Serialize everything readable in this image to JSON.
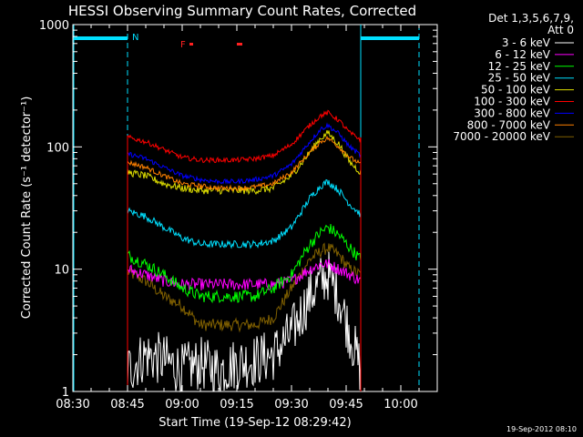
{
  "chart_data": {
    "type": "line",
    "title": "HESSI Observing Summary Count Rates, Corrected",
    "xlabel": "Start Time (19-Sep-12 08:29:42)",
    "ylabel": "Corrected Count Rate (s⁻¹ detector⁻¹)",
    "yscale": "log",
    "ylim": [
      1,
      1000
    ],
    "xlim_minutes": [
      0,
      100
    ],
    "x_tick_labels": [
      "08:30",
      "08:45",
      "09:00",
      "09:15",
      "09:30",
      "09:45",
      "10:00"
    ],
    "x_tick_minutes": [
      0,
      15,
      30,
      45,
      60,
      75,
      90
    ],
    "y_tick_labels": [
      "1",
      "10",
      "100",
      "1000"
    ],
    "y_tick_values": [
      1,
      10,
      100,
      1000
    ],
    "legend": {
      "header": [
        "Det 1,3,5,6,7,9,",
        "Att 0"
      ],
      "placement": "right"
    },
    "series": [
      {
        "name": "3 - 6 keV",
        "color": "#ffffff",
        "x": [
          15,
          20,
          25,
          30,
          35,
          40,
          45,
          50,
          55,
          60,
          65,
          68,
          70,
          73,
          76,
          79
        ],
        "values": [
          1.5,
          2.0,
          1.8,
          1.5,
          1.7,
          1.5,
          1.7,
          1.8,
          2.0,
          3.0,
          6.0,
          8.0,
          9.0,
          6.0,
          3.0,
          1.5
        ]
      },
      {
        "name": "6 - 12 keV",
        "color": "#ff00ff",
        "x": [
          15,
          20,
          25,
          30,
          35,
          40,
          45,
          50,
          55,
          60,
          65,
          68,
          70,
          73,
          76,
          79
        ],
        "values": [
          10,
          9,
          8,
          7.5,
          7.5,
          7.5,
          7.5,
          7.5,
          7.5,
          8,
          10,
          11,
          11,
          10,
          9,
          8
        ]
      },
      {
        "name": "12 - 25 keV",
        "color": "#00ff00",
        "x": [
          15,
          20,
          25,
          30,
          35,
          40,
          45,
          50,
          55,
          60,
          65,
          68,
          70,
          73,
          76,
          79
        ],
        "values": [
          13,
          11,
          9,
          7,
          6,
          6,
          6,
          6,
          7,
          9,
          16,
          20,
          22,
          19,
          15,
          12
        ]
      },
      {
        "name": "25 - 50 keV",
        "color": "#00e0ff",
        "x": [
          15,
          20,
          25,
          30,
          35,
          40,
          45,
          50,
          55,
          60,
          65,
          68,
          70,
          73,
          76,
          79
        ],
        "values": [
          30,
          27,
          22,
          18,
          16,
          16,
          16,
          16,
          17,
          22,
          38,
          48,
          52,
          44,
          34,
          28
        ]
      },
      {
        "name": "50 - 100 keV",
        "color": "#dddd00",
        "x": [
          15,
          20,
          25,
          30,
          35,
          40,
          45,
          50,
          55,
          60,
          65,
          68,
          70,
          73,
          76,
          79
        ],
        "values": [
          62,
          58,
          50,
          46,
          44,
          44,
          44,
          44,
          46,
          58,
          90,
          118,
          130,
          105,
          75,
          62
        ]
      },
      {
        "name": "100 - 300 keV",
        "color": "#ff0000",
        "x": [
          15,
          20,
          25,
          30,
          35,
          40,
          45,
          50,
          55,
          60,
          65,
          68,
          70,
          73,
          76,
          79
        ],
        "values": [
          120,
          110,
          95,
          82,
          78,
          78,
          78,
          80,
          85,
          105,
          150,
          180,
          190,
          165,
          130,
          115
        ]
      },
      {
        "name": "300 - 800 keV",
        "color": "#0000ff",
        "x": [
          15,
          20,
          25,
          30,
          35,
          40,
          45,
          50,
          55,
          60,
          65,
          68,
          70,
          73,
          76,
          79
        ],
        "values": [
          88,
          80,
          68,
          58,
          54,
          52,
          52,
          54,
          58,
          72,
          110,
          140,
          150,
          128,
          100,
          85
        ]
      },
      {
        "name": "800 - 7000 keV",
        "color": "#ff8000",
        "x": [
          15,
          20,
          25,
          30,
          35,
          40,
          45,
          50,
          55,
          60,
          65,
          68,
          70,
          73,
          76,
          79
        ],
        "values": [
          75,
          68,
          58,
          50,
          48,
          46,
          46,
          47,
          50,
          62,
          90,
          110,
          118,
          100,
          82,
          72
        ]
      },
      {
        "name": "7000 - 20000 keV",
        "color": "#806000",
        "x": [
          15,
          20,
          25,
          30,
          35,
          40,
          45,
          50,
          55,
          60,
          65,
          68,
          70,
          73,
          76,
          79
        ],
        "values": [
          9.5,
          8,
          6,
          5,
          3.5,
          3.5,
          3.5,
          3.5,
          4,
          7,
          12,
          14,
          15,
          13,
          10,
          9
        ]
      }
    ],
    "annotations": {
      "night_label": "N",
      "flare_label": "F",
      "night_markers_minutes": [
        0,
        15,
        79,
        95
      ],
      "flare_markers_minutes": [
        [
          32,
          33
        ],
        [
          45,
          46.5
        ]
      ]
    }
  },
  "timestamp": "19-Sep-2012 08:10"
}
